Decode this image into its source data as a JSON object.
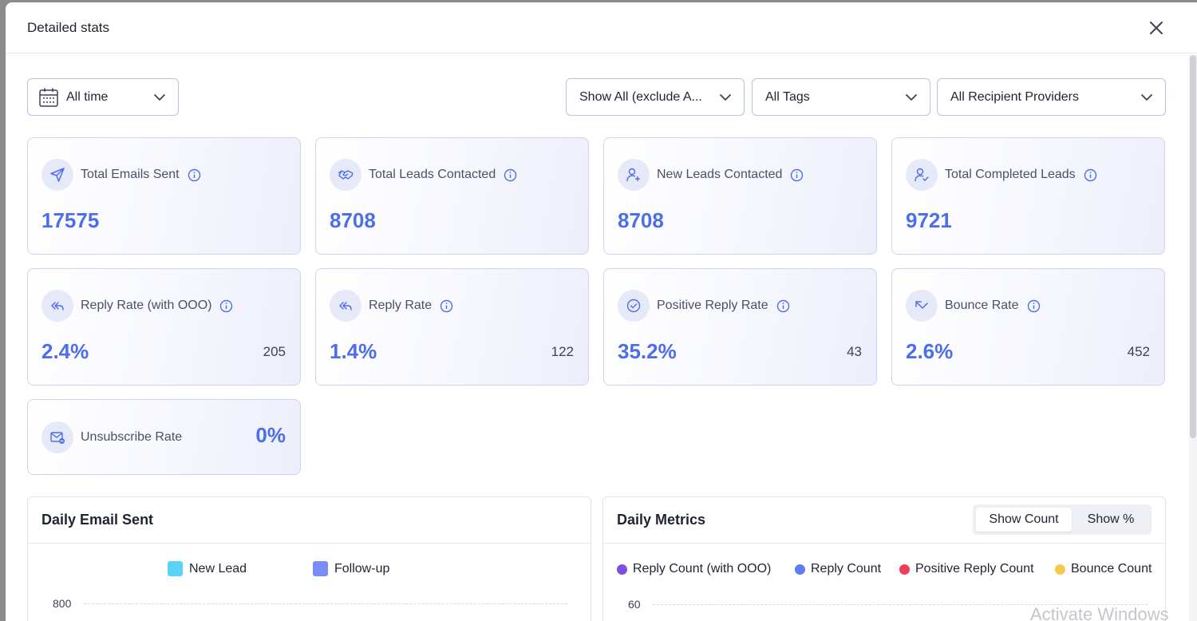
{
  "modal": {
    "title": "Detailed stats"
  },
  "filters": {
    "date_range": "All time",
    "status": "Show All (exclude A...",
    "tags": "All Tags",
    "providers": "All Recipient Providers"
  },
  "stats": [
    {
      "label": "Total Emails Sent",
      "value": "17575",
      "icon": "send-icon"
    },
    {
      "label": "Total Leads Contacted",
      "value": "8708",
      "icon": "handshake-icon"
    },
    {
      "label": "New Leads Contacted",
      "value": "8708",
      "icon": "user-plus-icon"
    },
    {
      "label": "Total Completed Leads",
      "value": "9721",
      "icon": "user-check-icon"
    },
    {
      "label": "Reply Rate (with OOO)",
      "value": "2.4%",
      "count": "205",
      "icon": "reply-all-icon"
    },
    {
      "label": "Reply Rate",
      "value": "1.4%",
      "count": "122",
      "icon": "reply-all-icon"
    },
    {
      "label": "Positive Reply Rate",
      "value": "35.2%",
      "count": "43",
      "icon": "check-circle-icon"
    },
    {
      "label": "Bounce Rate",
      "value": "2.6%",
      "count": "452",
      "icon": "bounce-arrow-icon"
    },
    {
      "label": "Unsubscribe Rate",
      "value": "0%",
      "icon": "mail-unsubscribe-icon"
    }
  ],
  "daily_email_sent": {
    "title": "Daily Email Sent",
    "legend": [
      {
        "label": "New Lead",
        "color": "#5ad3f7"
      },
      {
        "label": "Follow-up",
        "color": "#7a8cf7"
      }
    ],
    "y_tick_top": "800"
  },
  "daily_metrics": {
    "title": "Daily Metrics",
    "toggle": {
      "count_label": "Show Count",
      "percent_label": "Show %",
      "selected": "Show Count"
    },
    "legend": [
      {
        "label": "Reply Count (with OOO)",
        "color": "#7b4fe0"
      },
      {
        "label": "Reply Count",
        "color": "#5d7df0"
      },
      {
        "label": "Positive Reply Count",
        "color": "#f03e5a"
      },
      {
        "label": "Bounce Count",
        "color": "#f5c94d"
      }
    ],
    "y_tick_top": "60"
  },
  "os_watermark": "Activate Windows"
}
